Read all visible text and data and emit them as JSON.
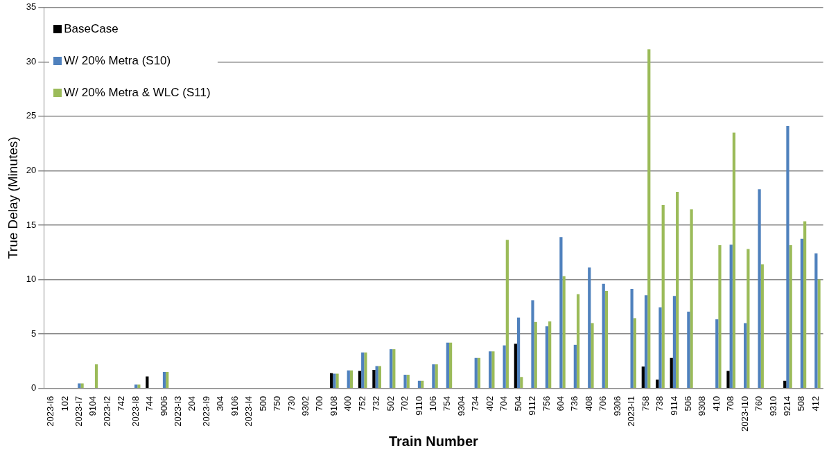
{
  "chart_data": {
    "type": "bar",
    "xlabel": "Train Number",
    "ylabel": "True Delay (Minutes)",
    "categories": [
      "2023-I6",
      "102",
      "2023-I7",
      "9104",
      "2023-I2",
      "742",
      "2023-I8",
      "744",
      "9006",
      "2023-I3",
      "204",
      "2023-I9",
      "304",
      "9106",
      "2023-I4",
      "500",
      "750",
      "730",
      "9302",
      "700",
      "9108",
      "400",
      "752",
      "732",
      "502",
      "702",
      "9110",
      "106",
      "754",
      "9304",
      "734",
      "402",
      "704",
      "504",
      "9112",
      "756",
      "604",
      "736",
      "408",
      "706",
      "9306",
      "2023-I1",
      "758",
      "738",
      "9114",
      "506",
      "9308",
      "410",
      "708",
      "2023-I10",
      "760",
      "9310",
      "9214",
      "508",
      "412"
    ],
    "series": [
      {
        "name": "BaseCase",
        "color": "#000000",
        "values": [
          null,
          null,
          null,
          null,
          null,
          null,
          null,
          1.1,
          null,
          null,
          null,
          null,
          null,
          null,
          null,
          null,
          null,
          null,
          null,
          null,
          1.4,
          null,
          1.6,
          1.7,
          null,
          null,
          null,
          null,
          null,
          null,
          null,
          null,
          null,
          4.1,
          null,
          null,
          null,
          null,
          null,
          null,
          null,
          null,
          2.0,
          0.8,
          2.8,
          null,
          null,
          null,
          1.6,
          null,
          null,
          null,
          0.7,
          null,
          null
        ]
      },
      {
        "name": "W/ 20% Metra (S10)",
        "color": "#4f81bd",
        "values": [
          null,
          null,
          0.45,
          null,
          null,
          null,
          0.35,
          null,
          1.5,
          null,
          null,
          null,
          null,
          null,
          null,
          null,
          null,
          null,
          null,
          null,
          1.35,
          1.65,
          3.3,
          2.05,
          3.6,
          1.25,
          0.7,
          2.2,
          4.2,
          null,
          2.8,
          3.4,
          3.95,
          6.5,
          8.1,
          5.7,
          13.9,
          4.0,
          11.1,
          9.6,
          null,
          9.15,
          8.55,
          7.45,
          8.5,
          7.05,
          null,
          6.35,
          13.2,
          6.0,
          18.3,
          null,
          24.1,
          13.75,
          12.4
        ]
      },
      {
        "name": "W/ 20% Metra & WLC (S11)",
        "color": "#9bbb59",
        "values": [
          null,
          null,
          0.45,
          2.2,
          null,
          null,
          0.35,
          null,
          1.5,
          null,
          null,
          null,
          null,
          null,
          null,
          null,
          null,
          null,
          null,
          null,
          1.35,
          1.65,
          3.3,
          2.05,
          3.6,
          1.25,
          0.7,
          2.2,
          4.2,
          null,
          2.8,
          3.4,
          13.65,
          1.05,
          6.1,
          6.15,
          10.3,
          8.65,
          6.0,
          8.95,
          null,
          6.45,
          31.15,
          16.85,
          18.05,
          16.45,
          null,
          13.15,
          23.5,
          12.8,
          11.4,
          null,
          13.15,
          15.35,
          10.0
        ]
      }
    ],
    "ylim": [
      0,
      35
    ],
    "yticks": [
      0,
      5,
      10,
      15,
      20,
      25,
      30,
      35
    ],
    "grid": "y",
    "legend": "top left"
  }
}
